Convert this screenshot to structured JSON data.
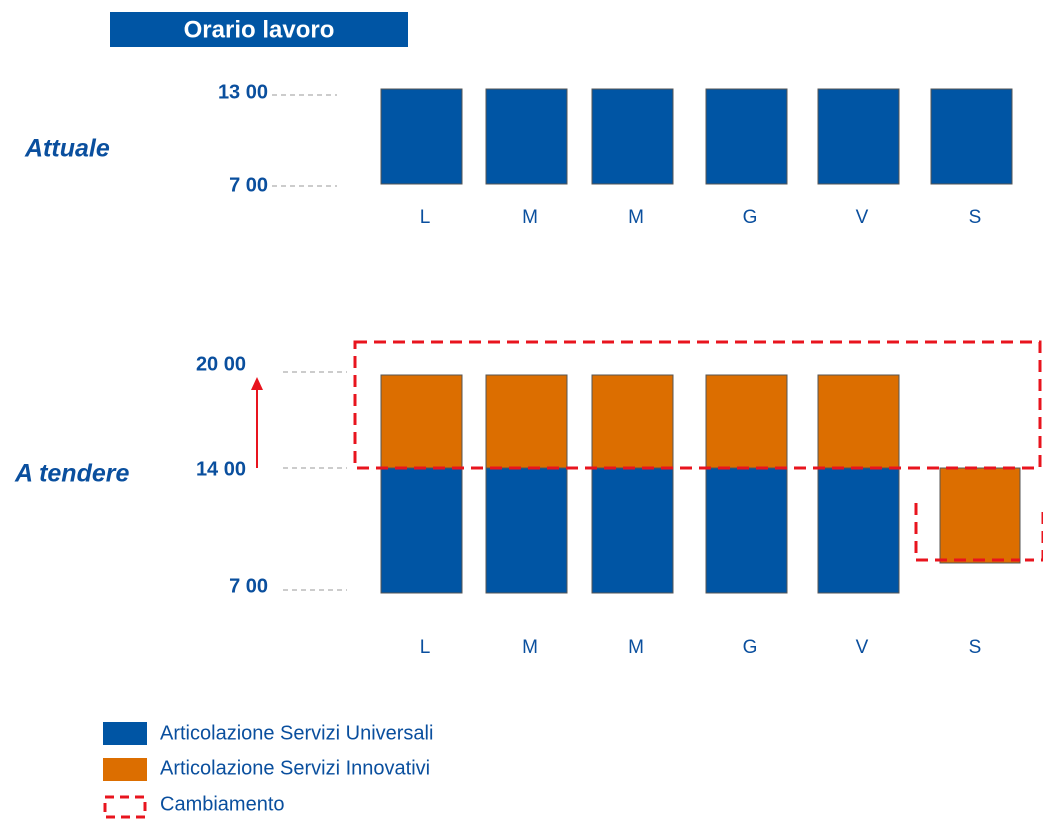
{
  "header": {
    "title": "Orario lavoro"
  },
  "current": {
    "label": "Attuale",
    "ticks": [
      "13 00",
      "7 00"
    ],
    "days": [
      "L",
      "M",
      "M",
      "G",
      "V",
      "S"
    ]
  },
  "future": {
    "label": "A tendere",
    "ticks": [
      "20 00",
      "14 00",
      "7 00"
    ],
    "days": [
      "L",
      "M",
      "M",
      "G",
      "V",
      "S"
    ]
  },
  "legend": [
    "Articolazione Servizi Universali",
    "Articolazione Servizi Innovativi",
    "Cambiamento"
  ]
}
